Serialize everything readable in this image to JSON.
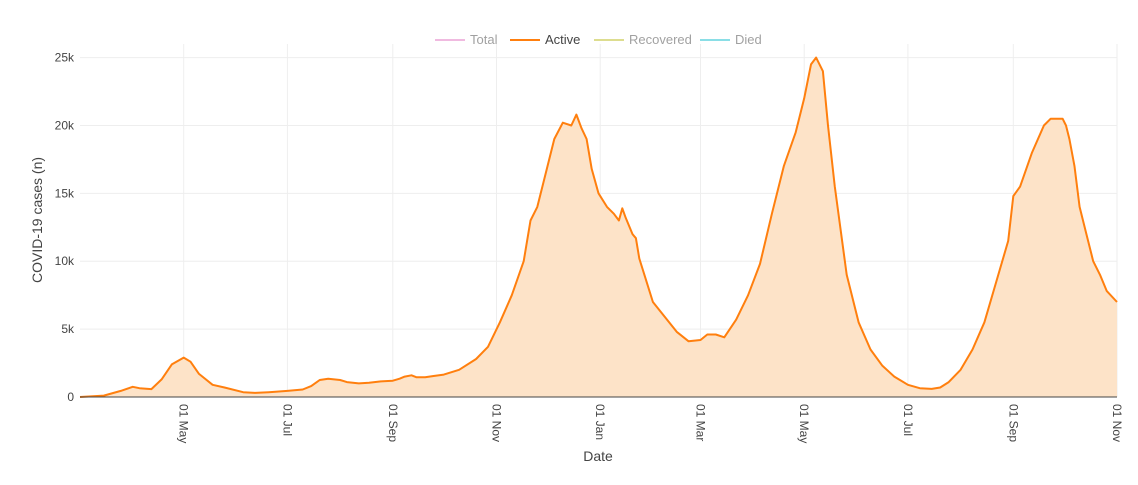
{
  "chart_data": {
    "type": "area",
    "title": "",
    "xlabel": "Date",
    "ylabel": "COVID-19 cases (n)",
    "ylim": [
      0,
      26000
    ],
    "xlim": [
      "2020-03-01",
      "2021-11-01"
    ],
    "grid": true,
    "legend_position": "top-center",
    "legend": [
      {
        "name": "Total",
        "color": "#e377c2",
        "active": false
      },
      {
        "name": "Active",
        "color": "#ff7f0e",
        "active": true
      },
      {
        "name": "Recovered",
        "color": "#bcbd22",
        "active": false
      },
      {
        "name": "Died",
        "color": "#17becf",
        "active": false
      }
    ],
    "y_ticks": [
      {
        "value": 0,
        "label": "0"
      },
      {
        "value": 5000,
        "label": "5k"
      },
      {
        "value": 10000,
        "label": "10k"
      },
      {
        "value": 15000,
        "label": "15k"
      },
      {
        "value": 20000,
        "label": "20k"
      },
      {
        "value": 25000,
        "label": "25k"
      }
    ],
    "x_ticks": [
      {
        "value": "2020-05-01",
        "label": "01 May"
      },
      {
        "value": "2020-07-01",
        "label": "01 Jul"
      },
      {
        "value": "2020-09-01",
        "label": "01 Sep"
      },
      {
        "value": "2020-11-01",
        "label": "01 Nov"
      },
      {
        "value": "2021-01-01",
        "label": "01 Jan"
      },
      {
        "value": "2021-03-01",
        "label": "01 Mar"
      },
      {
        "value": "2021-05-01",
        "label": "01 May"
      },
      {
        "value": "2021-07-01",
        "label": "01 Jul"
      },
      {
        "value": "2021-09-01",
        "label": "01 Sep"
      },
      {
        "value": "2021-11-01",
        "label": "01 Nov"
      }
    ],
    "series": [
      {
        "name": "Active",
        "color": "#ff7f0e",
        "fill": "#fde3c8",
        "x": [
          "2020-03-01",
          "2020-03-15",
          "2020-03-25",
          "2020-04-01",
          "2020-04-05",
          "2020-04-12",
          "2020-04-18",
          "2020-04-24",
          "2020-05-01",
          "2020-05-05",
          "2020-05-10",
          "2020-05-18",
          "2020-05-25",
          "2020-06-05",
          "2020-06-12",
          "2020-06-20",
          "2020-07-01",
          "2020-07-10",
          "2020-07-15",
          "2020-07-20",
          "2020-07-25",
          "2020-08-01",
          "2020-08-05",
          "2020-08-12",
          "2020-08-18",
          "2020-08-25",
          "2020-09-01",
          "2020-09-05",
          "2020-09-08",
          "2020-09-12",
          "2020-09-15",
          "2020-09-20",
          "2020-09-25",
          "2020-10-01",
          "2020-10-10",
          "2020-10-20",
          "2020-10-27",
          "2020-11-03",
          "2020-11-10",
          "2020-11-17",
          "2020-11-21",
          "2020-11-25",
          "2020-11-30",
          "2020-12-05",
          "2020-12-10",
          "2020-12-15",
          "2020-12-18",
          "2020-12-21",
          "2020-12-24",
          "2020-12-27",
          "2020-12-31",
          "2021-01-05",
          "2021-01-09",
          "2021-01-12",
          "2021-01-14",
          "2021-01-16",
          "2021-01-20",
          "2021-01-22",
          "2021-01-24",
          "2021-01-27",
          "2021-02-01",
          "2021-02-08",
          "2021-02-15",
          "2021-02-22",
          "2021-03-01",
          "2021-03-05",
          "2021-03-10",
          "2021-03-15",
          "2021-03-22",
          "2021-03-29",
          "2021-04-05",
          "2021-04-12",
          "2021-04-19",
          "2021-04-26",
          "2021-05-01",
          "2021-05-05",
          "2021-05-08",
          "2021-05-12",
          "2021-05-15",
          "2021-05-19",
          "2021-05-26",
          "2021-06-02",
          "2021-06-09",
          "2021-06-16",
          "2021-06-23",
          "2021-07-01",
          "2021-07-08",
          "2021-07-15",
          "2021-07-20",
          "2021-07-25",
          "2021-08-01",
          "2021-08-08",
          "2021-08-15",
          "2021-08-22",
          "2021-08-29",
          "2021-09-01",
          "2021-09-05",
          "2021-09-12",
          "2021-09-19",
          "2021-09-23",
          "2021-09-27",
          "2021-09-30",
          "2021-10-02",
          "2021-10-04",
          "2021-10-07",
          "2021-10-10",
          "2021-10-14",
          "2021-10-18",
          "2021-10-22",
          "2021-10-26",
          "2021-11-01"
        ],
        "values": [
          0,
          100,
          450,
          750,
          650,
          580,
          1300,
          2400,
          2900,
          2600,
          1700,
          900,
          700,
          350,
          300,
          350,
          450,
          550,
          800,
          1250,
          1350,
          1250,
          1100,
          1000,
          1050,
          1150,
          1200,
          1350,
          1500,
          1600,
          1450,
          1450,
          1550,
          1650,
          2000,
          2800,
          3700,
          5500,
          7500,
          10000,
          13000,
          14000,
          16500,
          19000,
          20200,
          20000,
          20800,
          19800,
          19000,
          16800,
          15000,
          14000,
          13500,
          13000,
          13900,
          13200,
          12000,
          11700,
          10200,
          9000,
          7000,
          5900,
          4800,
          4100,
          4200,
          4600,
          4600,
          4400,
          5700,
          7500,
          9800,
          13500,
          17000,
          19500,
          22000,
          24500,
          25000,
          24000,
          20000,
          15500,
          9000,
          5500,
          3500,
          2300,
          1500,
          900,
          650,
          600,
          700,
          1100,
          2000,
          3500,
          5500,
          8500,
          11500,
          14800,
          15500,
          18000,
          20000,
          20500,
          20500,
          20500,
          20000,
          19000,
          17000,
          14000,
          12000,
          10000,
          9000,
          7800,
          7000
        ]
      }
    ]
  }
}
